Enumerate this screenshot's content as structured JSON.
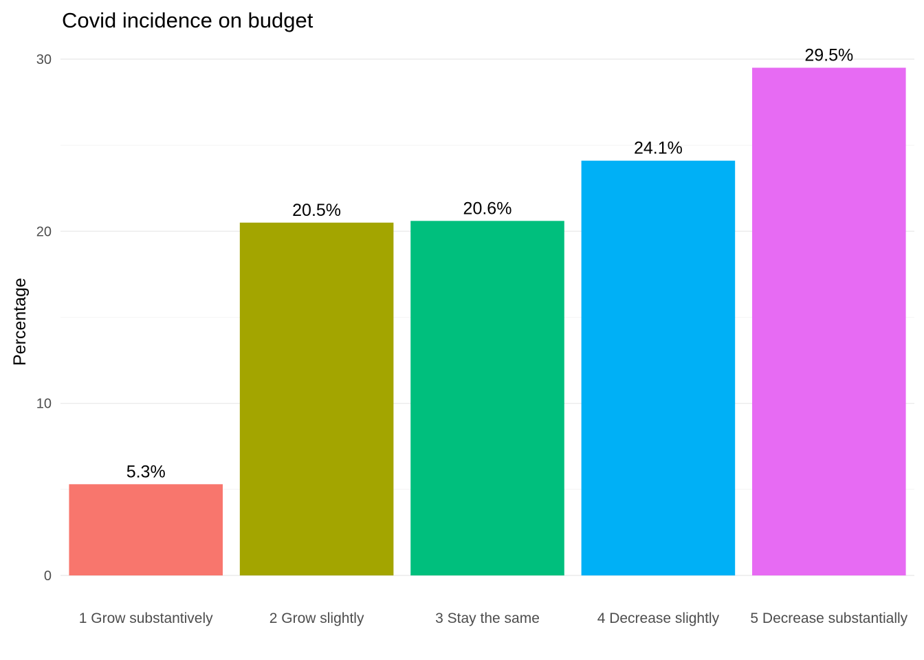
{
  "chart_data": {
    "type": "bar",
    "title": "Covid incidence on budget",
    "xlabel": "",
    "ylabel": "Percentage",
    "categories": [
      "1 Grow substantively",
      "2 Grow slightly",
      "3 Stay the same",
      "4 Decrease slightly",
      "5 Decrease substantially"
    ],
    "values": [
      5.3,
      20.5,
      20.6,
      24.1,
      29.5
    ],
    "data_labels": [
      "5.3%",
      "20.5%",
      "20.6%",
      "24.1%",
      "29.5%"
    ],
    "colors": [
      "#F8766D",
      "#A3A500",
      "#00BF7D",
      "#00B0F6",
      "#E76BF3"
    ],
    "ylim": [
      0,
      30
    ],
    "yticks": [
      0,
      10,
      20,
      30
    ],
    "grid": true,
    "legend": "none"
  }
}
